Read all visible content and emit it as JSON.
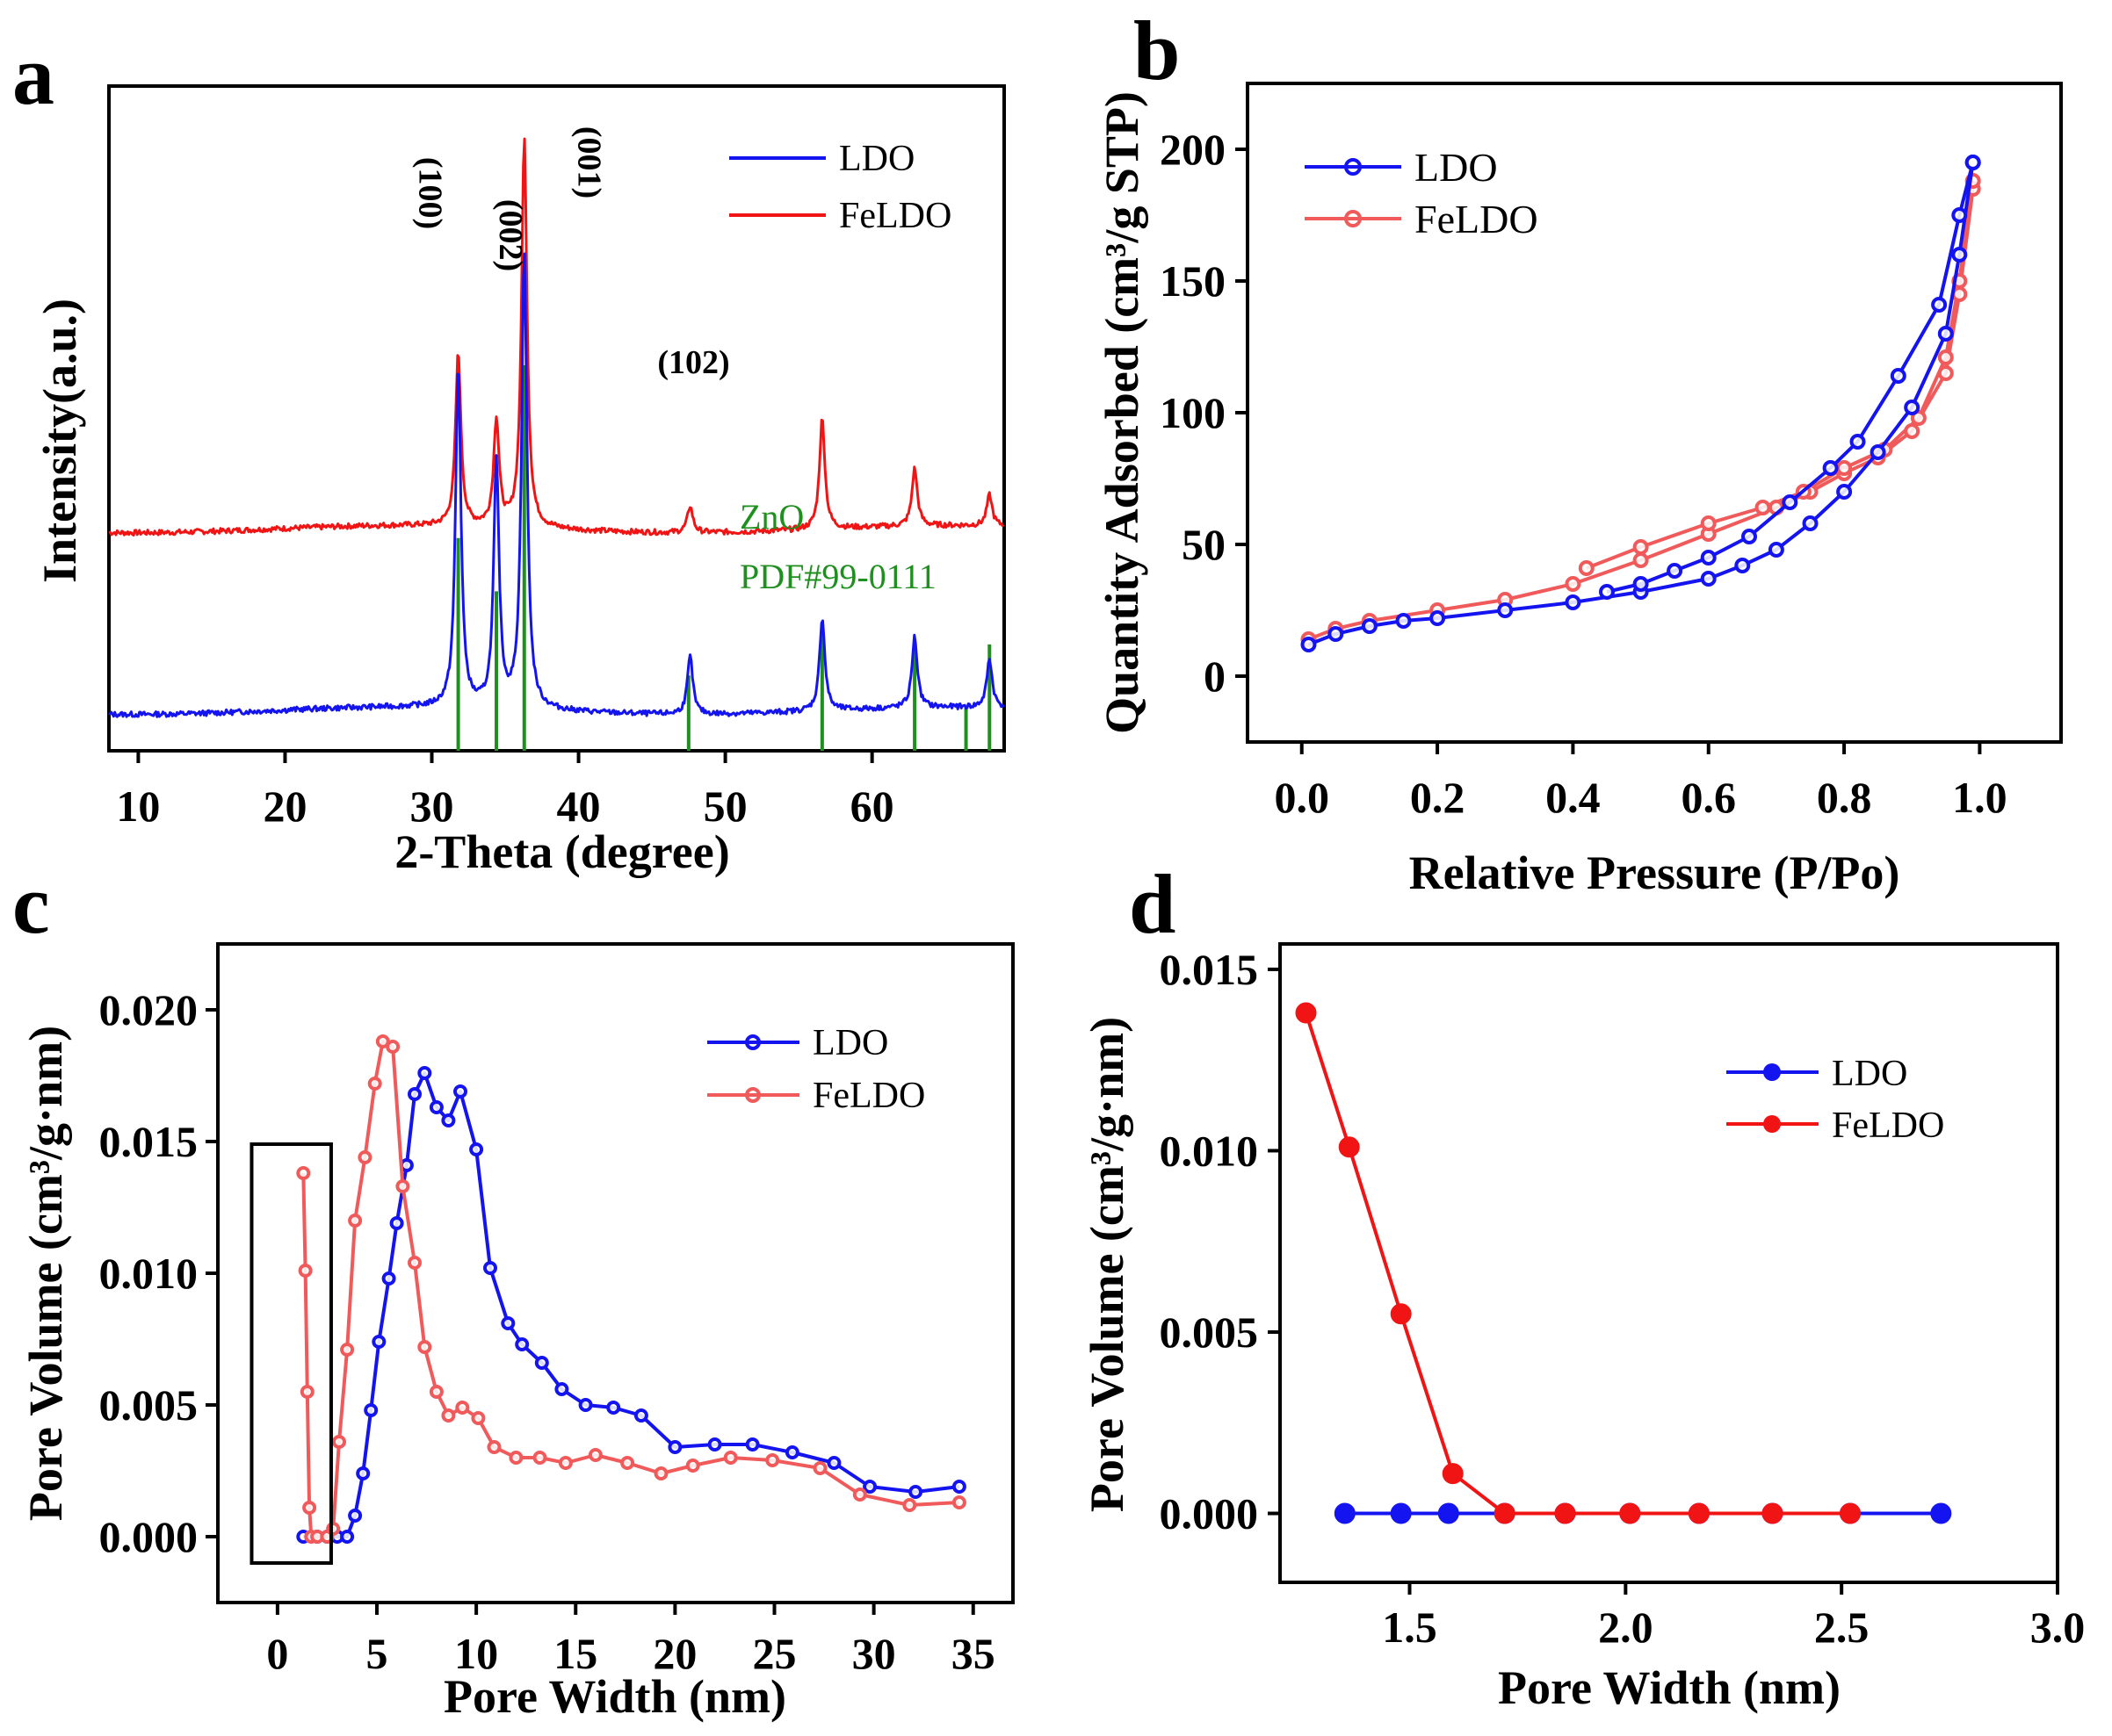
{
  "colors": {
    "ldo": "#1414f0",
    "feldo": "#f01414",
    "feldo_light": "#f05a5a",
    "reference": "#1f8f1f",
    "axis": "#000000"
  },
  "chart_data": [
    {
      "panel": "a",
      "type": "line",
      "xlabel": "2-Theta (degree)",
      "ylabel": "Intensity(a.u.)",
      "xlim": [
        8,
        69
      ],
      "xticks": [
        10,
        20,
        30,
        40,
        50,
        60
      ],
      "yticks": [],
      "legend_position": "top-right",
      "legend": [
        "LDO",
        "FeLDO"
      ],
      "reference_label": [
        "ZnO",
        "PDF#99-0111"
      ],
      "reference_peaks": [
        31.8,
        34.4,
        36.3,
        47.5,
        56.6,
        62.9,
        66.4,
        68.0
      ],
      "reference_heights": [
        0.48,
        0.36,
        0.87,
        0.17,
        0.27,
        0.25,
        0.1,
        0.24
      ],
      "peak_labels": [
        {
          "text": "(100)",
          "x": 31.8
        },
        {
          "text": "(002)",
          "x": 34.4
        },
        {
          "text": "(001)",
          "x": 36.3
        },
        {
          "text": "(102)",
          "x": 47.6
        }
      ],
      "series": [
        {
          "name": "LDO",
          "baseline": 0.09,
          "peaks": [
            [
              31.8,
              0.86
            ],
            [
              34.4,
              0.64
            ],
            [
              36.3,
              1.12
            ],
            [
              47.6,
              0.22
            ],
            [
              56.6,
              0.3
            ],
            [
              62.9,
              0.25
            ],
            [
              68.0,
              0.2
            ]
          ]
        },
        {
          "name": "FeLDO",
          "baseline": 0.5,
          "peaks": [
            [
              31.8,
              0.89
            ],
            [
              34.4,
              0.74
            ],
            [
              36.3,
              1.38
            ],
            [
              47.6,
              0.56
            ],
            [
              56.6,
              0.75
            ],
            [
              62.9,
              0.63
            ],
            [
              68.0,
              0.57
            ]
          ]
        }
      ]
    },
    {
      "panel": "b",
      "type": "line",
      "xlabel": "Relative Pressure (P/Po)",
      "ylabel": "Quantity Adsorbed (cm³/g STP)",
      "xlim": [
        -0.08,
        1.12
      ],
      "ylim": [
        -25,
        225
      ],
      "xticks": [
        "0.0",
        "0.2",
        "0.4",
        "0.6",
        "0.8",
        "1.0"
      ],
      "yticks": [
        "0",
        "50",
        "100",
        "150",
        "200"
      ],
      "legend_position": "top-left",
      "series": [
        {
          "name": "LDO",
          "adsorption": [
            [
              0.01,
              12
            ],
            [
              0.05,
              16
            ],
            [
              0.1,
              19
            ],
            [
              0.15,
              21
            ],
            [
              0.2,
              22
            ],
            [
              0.3,
              25
            ],
            [
              0.4,
              28
            ],
            [
              0.5,
              32
            ],
            [
              0.6,
              37
            ],
            [
              0.65,
              42
            ],
            [
              0.7,
              48
            ],
            [
              0.75,
              58
            ],
            [
              0.8,
              70
            ],
            [
              0.85,
              85
            ],
            [
              0.9,
              102
            ],
            [
              0.95,
              130
            ],
            [
              0.97,
              160
            ],
            [
              0.99,
              195
            ]
          ],
          "desorption": [
            [
              0.99,
              195
            ],
            [
              0.97,
              175
            ],
            [
              0.94,
              141
            ],
            [
              0.88,
              114
            ],
            [
              0.82,
              89
            ],
            [
              0.78,
              79
            ],
            [
              0.72,
              66
            ],
            [
              0.66,
              53
            ],
            [
              0.6,
              45
            ],
            [
              0.55,
              40
            ],
            [
              0.5,
              35
            ],
            [
              0.45,
              32
            ]
          ]
        },
        {
          "name": "FeLDO",
          "adsorption": [
            [
              0.01,
              14
            ],
            [
              0.05,
              18
            ],
            [
              0.1,
              21
            ],
            [
              0.2,
              25
            ],
            [
              0.3,
              29
            ],
            [
              0.4,
              35
            ],
            [
              0.5,
              44
            ],
            [
              0.6,
              54
            ],
            [
              0.7,
              64
            ],
            [
              0.75,
              70
            ],
            [
              0.8,
              77
            ],
            [
              0.85,
              83
            ],
            [
              0.9,
              93
            ],
            [
              0.95,
              115
            ],
            [
              0.97,
              145
            ],
            [
              0.99,
              185
            ]
          ],
          "desorption": [
            [
              0.99,
              188
            ],
            [
              0.97,
              150
            ],
            [
              0.95,
              121
            ],
            [
              0.91,
              98
            ],
            [
              0.86,
              86
            ],
            [
              0.8,
              79
            ],
            [
              0.74,
              70
            ],
            [
              0.68,
              64
            ],
            [
              0.6,
              58
            ],
            [
              0.5,
              49
            ],
            [
              0.42,
              41
            ]
          ]
        }
      ]
    },
    {
      "panel": "c",
      "type": "line",
      "xlabel": "Pore Width (nm)",
      "ylabel": "Pore Volume (cm³/g·nm)",
      "xlim": [
        -3,
        37
      ],
      "ylim": [
        -0.0025,
        0.0225
      ],
      "xticks": [
        "0",
        "5",
        "10",
        "15",
        "20",
        "25",
        "30",
        "35"
      ],
      "yticks": [
        "0.000",
        "0.005",
        "0.010",
        "0.015",
        "0.020"
      ],
      "legend_position": "top-right",
      "inset_box": {
        "x": [
          -1.3,
          2.7
        ],
        "y": [
          -0.001,
          0.0149
        ]
      },
      "series": [
        {
          "name": "LDO",
          "points": [
            [
              1.3,
              0
            ],
            [
              2.0,
              0
            ],
            [
              2.5,
              0
            ],
            [
              3.0,
              0
            ],
            [
              3.5,
              0
            ],
            [
              3.9,
              0.0008
            ],
            [
              4.3,
              0.0024
            ],
            [
              4.7,
              0.0048
            ],
            [
              5.1,
              0.0074
            ],
            [
              5.6,
              0.0098
            ],
            [
              6.0,
              0.0119
            ],
            [
              6.5,
              0.0141
            ],
            [
              6.9,
              0.0168
            ],
            [
              7.4,
              0.0176
            ],
            [
              8.0,
              0.0163
            ],
            [
              8.6,
              0.0158
            ],
            [
              9.2,
              0.0169
            ],
            [
              10.0,
              0.0147
            ],
            [
              10.7,
              0.0102
            ],
            [
              11.6,
              0.0081
            ],
            [
              12.3,
              0.0073
            ],
            [
              13.3,
              0.0066
            ],
            [
              14.3,
              0.0056
            ],
            [
              15.5,
              0.005
            ],
            [
              16.9,
              0.0049
            ],
            [
              18.3,
              0.0046
            ],
            [
              20.0,
              0.0034
            ],
            [
              22.0,
              0.0035
            ],
            [
              23.9,
              0.0035
            ],
            [
              25.9,
              0.0032
            ],
            [
              28.0,
              0.0028
            ],
            [
              29.8,
              0.0019
            ],
            [
              32.1,
              0.0017
            ],
            [
              34.3,
              0.0019
            ]
          ]
        },
        {
          "name": "FeLDO",
          "points": [
            [
              1.3,
              0.0138
            ],
            [
              1.4,
              0.0101
            ],
            [
              1.5,
              0.0055
            ],
            [
              1.6,
              0.0011
            ],
            [
              1.7,
              0
            ],
            [
              2.0,
              0
            ],
            [
              2.5,
              0
            ],
            [
              2.8,
              0.0003
            ],
            [
              3.1,
              0.0036
            ],
            [
              3.5,
              0.0071
            ],
            [
              3.9,
              0.012
            ],
            [
              4.4,
              0.0144
            ],
            [
              4.9,
              0.0172
            ],
            [
              5.3,
              0.0188
            ],
            [
              5.8,
              0.0186
            ],
            [
              6.3,
              0.0133
            ],
            [
              6.9,
              0.0104
            ],
            [
              7.4,
              0.0072
            ],
            [
              8.0,
              0.0055
            ],
            [
              8.6,
              0.0046
            ],
            [
              9.3,
              0.0049
            ],
            [
              10.1,
              0.0045
            ],
            [
              10.9,
              0.0034
            ],
            [
              12.0,
              0.003
            ],
            [
              13.2,
              0.003
            ],
            [
              14.5,
              0.0028
            ],
            [
              16.0,
              0.0031
            ],
            [
              17.6,
              0.0028
            ],
            [
              19.3,
              0.0024
            ],
            [
              20.9,
              0.0027
            ],
            [
              22.8,
              0.003
            ],
            [
              24.9,
              0.0029
            ],
            [
              27.3,
              0.0026
            ],
            [
              29.3,
              0.0016
            ],
            [
              31.8,
              0.0012
            ],
            [
              34.3,
              0.0013
            ]
          ]
        }
      ]
    },
    {
      "panel": "d",
      "type": "line",
      "xlabel": "Pore Width (nm)",
      "ylabel": "Pore Volume (cm³/g·nm)",
      "xlim": [
        1.2,
        3.0
      ],
      "ylim": [
        -0.0019,
        0.0157
      ],
      "xticks": [
        "1.5",
        "2.0",
        "2.5",
        "3.0"
      ],
      "yticks": [
        "0.000",
        "0.005",
        "0.010",
        "0.015"
      ],
      "legend_position": "top-right",
      "series": [
        {
          "name": "LDO",
          "points": [
            [
              1.35,
              0
            ],
            [
              1.48,
              0
            ],
            [
              1.59,
              0
            ],
            [
              1.72,
              0
            ],
            [
              1.86,
              0
            ],
            [
              2.01,
              0
            ],
            [
              2.17,
              0
            ],
            [
              2.34,
              0
            ],
            [
              2.52,
              0
            ],
            [
              2.73,
              0
            ]
          ]
        },
        {
          "name": "FeLDO",
          "points": [
            [
              1.26,
              0.0138
            ],
            [
              1.36,
              0.0101
            ],
            [
              1.48,
              0.0055
            ],
            [
              1.6,
              0.0011
            ],
            [
              1.72,
              0
            ],
            [
              1.86,
              0
            ],
            [
              2.01,
              0
            ],
            [
              2.17,
              0
            ],
            [
              2.34,
              0
            ],
            [
              2.52,
              0
            ]
          ]
        }
      ]
    }
  ]
}
